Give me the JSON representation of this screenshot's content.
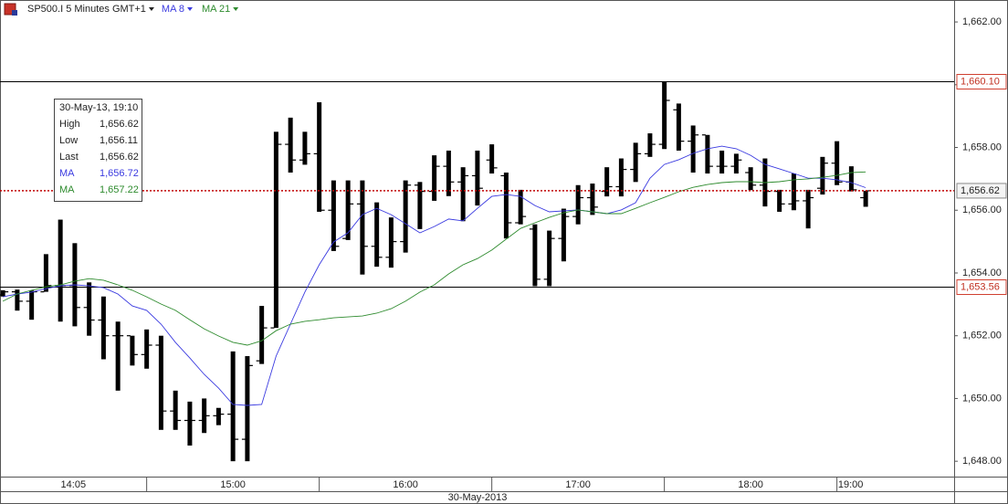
{
  "chart_data": {
    "type": "ohlc",
    "title": "SP500.I 5 Minutes GMT+1",
    "color": "#000000",
    "open": [
      1653.3,
      1653.4,
      1653.1,
      1653.4,
      1653.6,
      1653.6,
      1652.9,
      1652.5,
      1652.0,
      1652.0,
      1651.4,
      1651.7,
      1649.6,
      1649.3,
      1649.3,
      1649.45,
      1649.5,
      1648.7,
      1651.2,
      1652.25,
      1658.1,
      1657.6,
      1657.8,
      1656.0,
      1655.1,
      1656.2,
      1654.85,
      1654.5,
      1655.0,
      1656.8,
      1656.6,
      1657.4,
      1656.9,
      1657.1,
      1657.6,
      1657.1,
      1655.6,
      1655.4,
      1653.8,
      1655.1,
      1655.8,
      1656.4,
      1656.6,
      1656.75,
      1657.3,
      1657.8,
      1658.1,
      1659.2,
      1658.2,
      1658.4,
      1657.4,
      1657.4,
      1657.2,
      1656.8,
      1656.6,
      1656.2,
      1656.3,
      1656.7,
      1657.5,
      1656.9,
      1656.4
    ],
    "high": [
      1653.45,
      1653.47,
      1653.44,
      1654.6,
      1655.7,
      1654.95,
      1653.7,
      1653.25,
      1652.45,
      1652.0,
      1652.2,
      1652.0,
      1650.25,
      1649.9,
      1650.0,
      1649.7,
      1651.5,
      1651.35,
      1652.95,
      1658.5,
      1658.95,
      1658.5,
      1659.44,
      1656.95,
      1656.95,
      1656.95,
      1656.25,
      1655.77,
      1656.95,
      1656.9,
      1657.75,
      1657.9,
      1657.37,
      1657.9,
      1658.1,
      1657.2,
      1656.65,
      1655.55,
      1655.35,
      1656.05,
      1656.8,
      1656.85,
      1657.37,
      1657.65,
      1658.15,
      1658.45,
      1660.1,
      1659.4,
      1658.7,
      1658.4,
      1657.9,
      1657.8,
      1657.37,
      1657.65,
      1656.65,
      1657.17,
      1656.65,
      1657.7,
      1658.2,
      1657.4,
      1656.62
    ],
    "low": [
      1653.25,
      1652.8,
      1652.51,
      1653.4,
      1652.45,
      1652.3,
      1652.0,
      1651.25,
      1650.25,
      1651.05,
      1650.95,
      1649.0,
      1649.0,
      1648.5,
      1648.9,
      1649.15,
      1648.0,
      1648.0,
      1651.1,
      1652.25,
      1657.2,
      1657.45,
      1655.95,
      1654.7,
      1655.05,
      1653.95,
      1654.2,
      1654.17,
      1654.65,
      1655.4,
      1656.3,
      1656.45,
      1655.65,
      1656.15,
      1657.17,
      1655.1,
      1655.55,
      1653.58,
      1653.58,
      1654.37,
      1655.55,
      1655.85,
      1656.44,
      1656.44,
      1656.9,
      1657.7,
      1657.95,
      1657.9,
      1657.2,
      1657.17,
      1657.17,
      1657.17,
      1656.64,
      1656.12,
      1655.95,
      1656.0,
      1655.42,
      1656.5,
      1656.8,
      1656.6,
      1656.11
    ],
    "close": [
      1653.4,
      1653.1,
      1653.4,
      1653.6,
      1653.6,
      1652.9,
      1652.5,
      1652.0,
      1652.0,
      1651.4,
      1651.7,
      1649.6,
      1649.3,
      1649.3,
      1649.45,
      1649.5,
      1648.7,
      1651.05,
      1652.25,
      1658.1,
      1657.6,
      1657.8,
      1656.0,
      1654.85,
      1656.2,
      1654.85,
      1654.5,
      1655.0,
      1656.8,
      1656.6,
      1657.4,
      1656.9,
      1657.1,
      1656.7,
      1657.35,
      1655.6,
      1655.8,
      1653.8,
      1655.1,
      1655.8,
      1656.4,
      1656.1,
      1656.75,
      1657.3,
      1657.8,
      1658.1,
      1659.5,
      1658.2,
      1658.4,
      1657.4,
      1657.4,
      1657.6,
      1656.8,
      1656.6,
      1656.2,
      1656.3,
      1656.4,
      1657.5,
      1656.9,
      1656.65,
      1656.62
    ],
    "series": [
      {
        "name": "MA 8",
        "color": "#3a3ae0",
        "values": [
          1653.24,
          1653.33,
          1653.39,
          1653.5,
          1653.59,
          1653.62,
          1653.59,
          1653.53,
          1653.33,
          1652.95,
          1652.81,
          1652.37,
          1651.79,
          1651.29,
          1650.77,
          1650.33,
          1649.81,
          1649.78,
          1649.81,
          1651.35,
          1652.37,
          1653.39,
          1654.26,
          1654.99,
          1655.28,
          1655.86,
          1656.06,
          1655.86,
          1655.57,
          1655.28,
          1655.48,
          1655.72,
          1655.66,
          1656.06,
          1656.44,
          1656.5,
          1656.44,
          1656.15,
          1655.95,
          1655.98,
          1656.01,
          1655.95,
          1655.89,
          1656.01,
          1656.24,
          1657.02,
          1657.46,
          1657.61,
          1657.81,
          1657.96,
          1658.04,
          1657.96,
          1657.75,
          1657.46,
          1657.32,
          1657.17,
          1657.02,
          1657.02,
          1656.97,
          1656.88,
          1656.72
        ]
      },
      {
        "name": "MA 21",
        "color": "#2e8b2e",
        "values": [
          1653.1,
          1653.33,
          1653.45,
          1653.56,
          1653.62,
          1653.74,
          1653.82,
          1653.77,
          1653.62,
          1653.45,
          1653.24,
          1653.01,
          1652.81,
          1652.51,
          1652.22,
          1651.99,
          1651.79,
          1651.7,
          1651.84,
          1652.16,
          1652.37,
          1652.46,
          1652.51,
          1652.57,
          1652.6,
          1652.63,
          1652.72,
          1652.86,
          1653.1,
          1653.39,
          1653.62,
          1653.97,
          1654.26,
          1654.46,
          1654.73,
          1655.08,
          1655.42,
          1655.6,
          1655.77,
          1655.92,
          1656.01,
          1655.95,
          1655.89,
          1655.89,
          1656.06,
          1656.24,
          1656.41,
          1656.59,
          1656.73,
          1656.82,
          1656.88,
          1656.91,
          1656.91,
          1656.88,
          1656.91,
          1656.97,
          1657.0,
          1657.05,
          1657.11,
          1657.2,
          1657.22
        ]
      }
    ],
    "ylim": [
      1647.51,
      1662.7
    ],
    "yticks": [
      {
        "value": 1648,
        "label": "1,648.00"
      },
      {
        "value": 1650,
        "label": "1,650.00"
      },
      {
        "value": 1652,
        "label": "1,652.00"
      },
      {
        "value": 1654,
        "label": "1,654.00"
      },
      {
        "value": 1656,
        "label": "1,656.00"
      },
      {
        "value": 1658,
        "label": "1,658.00"
      },
      {
        "value": 1660,
        "label": "1,660.00"
      },
      {
        "value": 1662,
        "label": "1,662.00"
      }
    ],
    "xlim": [
      -0.2,
      66.15
    ],
    "xticks": [
      {
        "value": -1,
        "label": "14:05"
      },
      {
        "value": 10,
        "label": "15:00"
      },
      {
        "value": 22,
        "label": "16:00"
      },
      {
        "value": 34,
        "label": "17:00"
      },
      {
        "value": 46,
        "label": "18:00"
      },
      {
        "value": 58,
        "label": "19:00"
      }
    ],
    "x_label": "30-May-2013",
    "levels": [
      {
        "value": 1660.1,
        "label": "1,660.10"
      },
      {
        "value": 1653.56,
        "label": "1,653.56"
      }
    ],
    "last_price": {
      "value": 1656.62,
      "label": "1,656.62"
    },
    "tooltip": {
      "title": "30-May-13, 19:10",
      "rows": [
        [
          "High",
          "1,656.62"
        ],
        [
          "Low",
          "1,656.11"
        ],
        [
          "Last",
          "1,656.62"
        ],
        [
          "MA",
          "1,656.72"
        ],
        [
          "MA",
          "1,657.22"
        ]
      ]
    }
  }
}
